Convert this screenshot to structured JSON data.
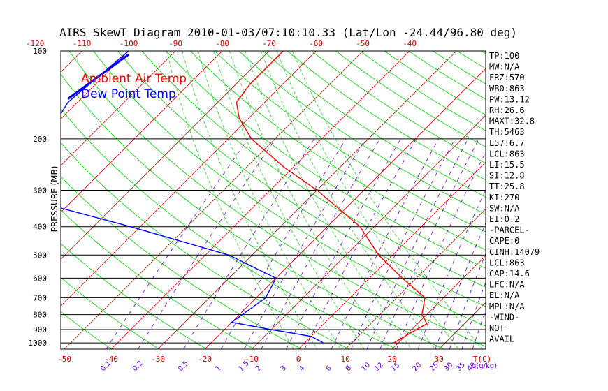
{
  "chart_data": {
    "type": "line",
    "title": "AIRS SkewT Diagram 2010-01-03/07:10:10.33 (Lat/Lon -24.44/96.80 deg)",
    "ylabel": "PRESSURE (MB)",
    "y_scale": "log",
    "ylim": [
      1050,
      100
    ],
    "pressure_ticks": [
      100,
      200,
      300,
      400,
      500,
      600,
      700,
      800,
      900,
      1000
    ],
    "top_temp_ticks": [
      -120,
      -110,
      -100,
      -90,
      -80,
      -70,
      -60,
      -50,
      -40
    ],
    "bottom_temp_ticks": [
      -50,
      -40,
      -30,
      -20,
      -10,
      0,
      10,
      20,
      30
    ],
    "bottom_axis_unit": "T(C)",
    "mixing_ratio_labels": [
      "0.1",
      "0.2",
      "0.5",
      "1",
      "1.5",
      "2",
      "3",
      "4",
      "6",
      "8",
      "10",
      "12",
      "15",
      "20",
      "25",
      "30",
      "35",
      "40"
    ],
    "mixing_ratio_unit": "g(g/kg)",
    "legend": [
      {
        "name": "Ambient Air Temp",
        "color": "#ff0000"
      },
      {
        "name": "Dew Point Temp",
        "color": "#0000ff"
      }
    ],
    "series": [
      {
        "name": "Ambient Air Temp",
        "color": "#ff0000",
        "points": [
          [
            100,
            -67
          ],
          [
            130,
            -67
          ],
          [
            150,
            -66
          ],
          [
            170,
            -62
          ],
          [
            200,
            -55
          ],
          [
            250,
            -42
          ],
          [
            300,
            -30
          ],
          [
            400,
            -13
          ],
          [
            500,
            -3
          ],
          [
            600,
            7
          ],
          [
            700,
            16
          ],
          [
            800,
            19
          ],
          [
            860,
            22
          ],
          [
            900,
            21
          ],
          [
            950,
            20
          ],
          [
            1000,
            19
          ]
        ]
      },
      {
        "name": "Dew Point Temp",
        "color": "#0000ff",
        "points": [
          [
            100,
            -100
          ],
          [
            150,
            -102
          ],
          [
            200,
            -99
          ],
          [
            250,
            -99
          ],
          [
            300,
            -99
          ],
          [
            400,
            -62
          ],
          [
            500,
            -35
          ],
          [
            600,
            -20
          ],
          [
            700,
            -18
          ],
          [
            850,
            -20
          ],
          [
            900,
            -10
          ],
          [
            950,
            0
          ],
          [
            1000,
            4
          ]
        ]
      }
    ],
    "side_panel": [
      "TP:100",
      "MW:N/A",
      "FRZ:570",
      "WB0:863",
      "PW:13.12",
      "RH:26.6",
      "MAXT:32.8",
      "TH:5463",
      "L57:6.7",
      "LCL:863",
      "LI:15.5",
      "SI:12.8",
      "TT:25.8",
      "KI:270",
      "SW:N/A",
      "EI:0.2",
      "-PARCEL-",
      "CAPE:0",
      "CINH:14079",
      "LCL:863",
      "CAP:14.6",
      "LFC:N/A",
      "EL:N/A",
      "MPL:N/A",
      "-WIND-",
      "NOT",
      "AVAIL"
    ],
    "colors": {
      "isotherm": "#cc0000",
      "dry_adiabat": "#00cc00",
      "moist_adiabat": "#00cc00",
      "mixing_ratio": "#6600cc",
      "isobar": "#000000"
    },
    "grid": true
  }
}
